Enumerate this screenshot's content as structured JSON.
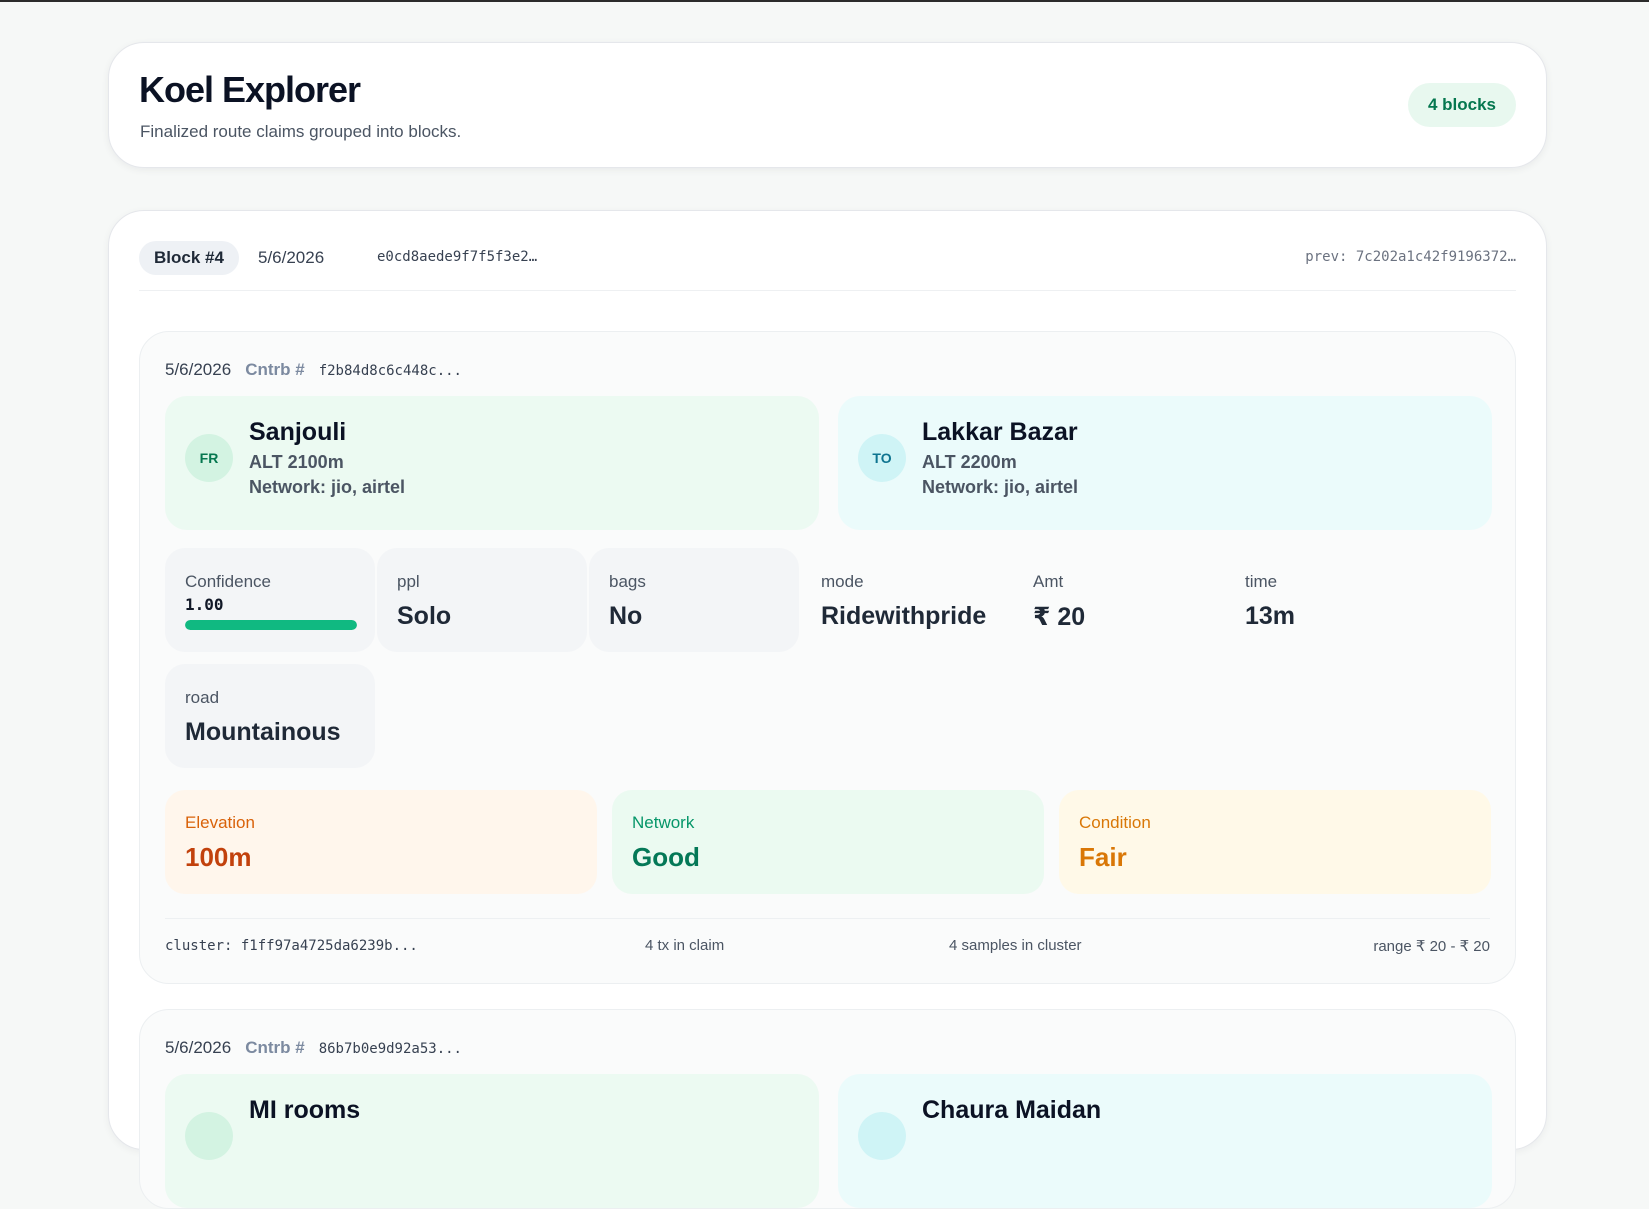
{
  "app": {
    "title": "Koel Explorer",
    "subtitle": "Finalized route claims grouped into blocks.",
    "block_count": "4 blocks"
  },
  "block": {
    "label": "Block #4",
    "date": "5/6/2026",
    "hash": "e0cd8aede9f7f5f3e2…",
    "prev": "prev: 7c202a1c42f9196372…"
  },
  "claims": [
    {
      "date": "5/6/2026",
      "cntrb_label": "Cntrb #",
      "hash": "f2b84d8c6c448c...",
      "from": {
        "avatar": "FR",
        "name": "Sanjouli",
        "alt": "ALT 2100m",
        "network": "Network: jio, airtel"
      },
      "to": {
        "avatar": "TO",
        "name": "Lakkar Bazar",
        "alt": "ALT 2200m",
        "network": "Network: jio, airtel"
      },
      "confidence": {
        "label": "Confidence",
        "value": "1.00",
        "fraction": 1.0
      },
      "stats": {
        "ppl": {
          "label": "ppl",
          "value": "Solo"
        },
        "bags": {
          "label": "bags",
          "value": "No"
        },
        "mode": {
          "label": "mode",
          "value": "Ridewithpride"
        },
        "amt": {
          "label": "Amt",
          "value": "₹ 20"
        },
        "time": {
          "label": "time",
          "value": "13m"
        },
        "road": {
          "label": "road",
          "value": "Mountainous"
        }
      },
      "metrics": {
        "elevation": {
          "label": "Elevation",
          "value": "100m"
        },
        "network": {
          "label": "Network",
          "value": "Good"
        },
        "condition": {
          "label": "Condition",
          "value": "Fair"
        }
      },
      "footer": {
        "cluster": "cluster: f1ff97a4725da6239b...",
        "tx": "4 tx in claim",
        "samples": "4 samples in cluster",
        "range": "range ₹ 20 - ₹ 20"
      }
    },
    {
      "date": "5/6/2026",
      "cntrb_label": "Cntrb #",
      "hash": "86b7b0e9d92a53...",
      "from": {
        "name": "MI rooms"
      },
      "to": {
        "name": "Chaura Maidan"
      }
    }
  ]
}
